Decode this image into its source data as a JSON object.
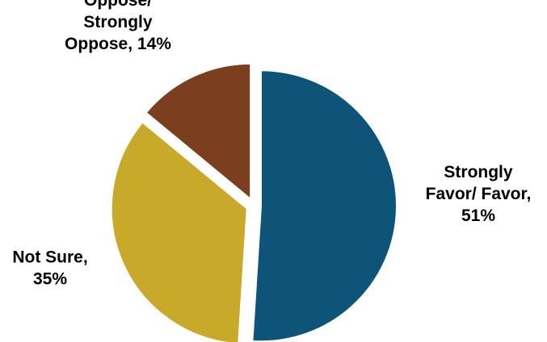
{
  "chart_data": {
    "type": "pie",
    "title": "",
    "slices": [
      {
        "label_lines": [
          "Strongly",
          "Favor/ Favor,",
          "51%"
        ],
        "category": "Strongly Favor/ Favor",
        "value": 51,
        "color": "#0D5478"
      },
      {
        "label_lines": [
          "Not Sure,",
          "35%"
        ],
        "category": "Not Sure",
        "value": 35,
        "color": "#C9A92A"
      },
      {
        "label_lines": [
          "Oppose/",
          "Strongly",
          "Oppose, 14%"
        ],
        "category": "Oppose/ Strongly Oppose",
        "value": 14,
        "color": "#7B3F1F"
      }
    ],
    "start_angle_deg": 0,
    "direction": "clockwise",
    "exploded": true,
    "legend": "none"
  }
}
